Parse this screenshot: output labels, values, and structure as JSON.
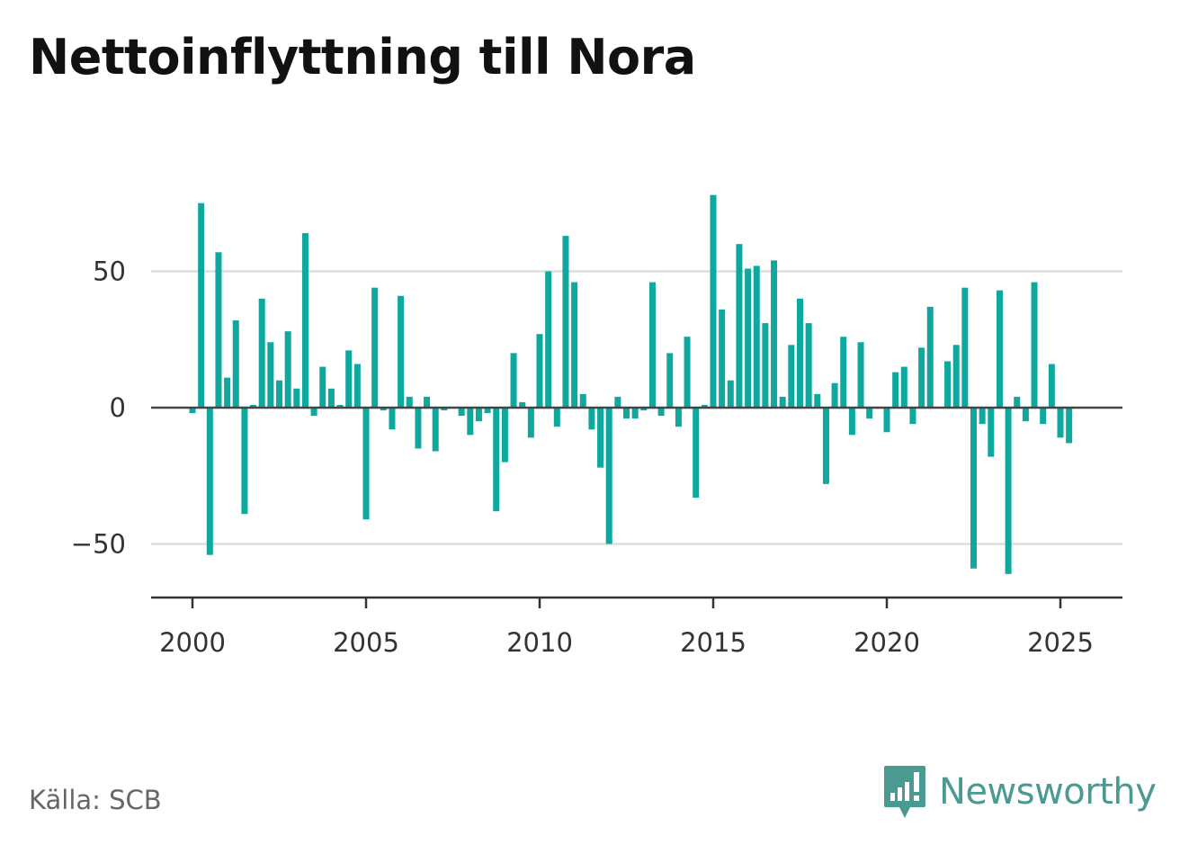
{
  "title": "Nettoinflyttning till Nora",
  "source": "Källa: SCB",
  "brand": {
    "name": "Newsworthy",
    "icon": "newsworthy-logo-icon"
  },
  "colors": {
    "bar": "#0ea89e",
    "gridline": "#dddddd",
    "zero_line": "#444444",
    "axis": "#333333",
    "title": "#111111",
    "source": "#666666",
    "brand": "#4a9a92"
  },
  "chart_data": {
    "type": "bar",
    "title": "Nettoinflyttning till Nora",
    "xlabel": "",
    "ylabel": "",
    "x_ticks": [
      2000,
      2005,
      2010,
      2015,
      2020,
      2025
    ],
    "y_ticks": [
      -50,
      0,
      50
    ],
    "y_tick_labels": [
      "−50",
      "0",
      "50"
    ],
    "xlim": [
      1999.4,
      2026.9
    ],
    "ylim": [
      -70,
      85
    ],
    "grid": true,
    "series": [
      {
        "x": [
          2000.0,
          2000.25,
          2000.5,
          2000.75,
          2001.0,
          2001.25,
          2001.5,
          2001.75,
          2002.0,
          2002.25,
          2002.5,
          2002.75,
          2003.0,
          2003.25,
          2003.5,
          2003.75,
          2004.0,
          2004.25,
          2004.5,
          2004.75,
          2005.0,
          2005.25,
          2005.5,
          2005.75,
          2006.0,
          2006.25,
          2006.5,
          2006.75,
          2007.0,
          2007.25,
          2007.5,
          2007.75,
          2008.0,
          2008.25,
          2008.5,
          2008.75,
          2009.0,
          2009.25,
          2009.5,
          2009.75,
          2010.0,
          2010.25,
          2010.5,
          2010.75,
          2011.0,
          2011.25,
          2011.5,
          2011.75,
          2012.0,
          2012.25,
          2012.5,
          2012.75,
          2013.0,
          2013.25,
          2013.5,
          2013.75,
          2014.0,
          2014.25,
          2014.5,
          2014.75,
          2015.0,
          2015.25,
          2015.5,
          2015.75,
          2016.0,
          2016.25,
          2016.5,
          2016.75,
          2017.0,
          2017.25,
          2017.5,
          2017.75,
          2018.0,
          2018.25,
          2018.5,
          2018.75,
          2019.0,
          2019.25,
          2019.5,
          2019.75,
          2020.0,
          2020.25,
          2020.5,
          2020.75,
          2021.0,
          2021.25,
          2021.5,
          2021.75,
          2022.0,
          2022.25,
          2022.5,
          2022.75,
          2023.0,
          2023.25,
          2023.5,
          2023.75,
          2024.0,
          2024.25,
          2024.5,
          2024.75,
          2025.0,
          2025.25
        ],
        "values": [
          -2,
          75,
          -54,
          57,
          11,
          32,
          -39,
          1,
          40,
          24,
          10,
          28,
          7,
          64,
          -3,
          15,
          7,
          1,
          21,
          16,
          -41,
          44,
          -1,
          -8,
          41,
          4,
          -15,
          4,
          -16,
          -1,
          0,
          -3,
          -10,
          -5,
          -2,
          -38,
          -20,
          20,
          2,
          -11,
          27,
          50,
          -7,
          63,
          46,
          5,
          -8,
          -22,
          -50,
          4,
          -4,
          -4,
          -1,
          46,
          -3,
          20,
          -7,
          26,
          -33,
          1,
          78,
          36,
          10,
          60,
          51,
          52,
          31,
          54,
          4,
          23,
          40,
          31,
          5,
          -28,
          9,
          26,
          -10,
          24,
          -4,
          0,
          -9,
          13,
          15,
          -6,
          22,
          37,
          0,
          17,
          23,
          44,
          -59,
          -6,
          -18,
          43,
          -61,
          4,
          -5,
          46,
          -6,
          16,
          -11,
          -13
        ]
      }
    ]
  }
}
